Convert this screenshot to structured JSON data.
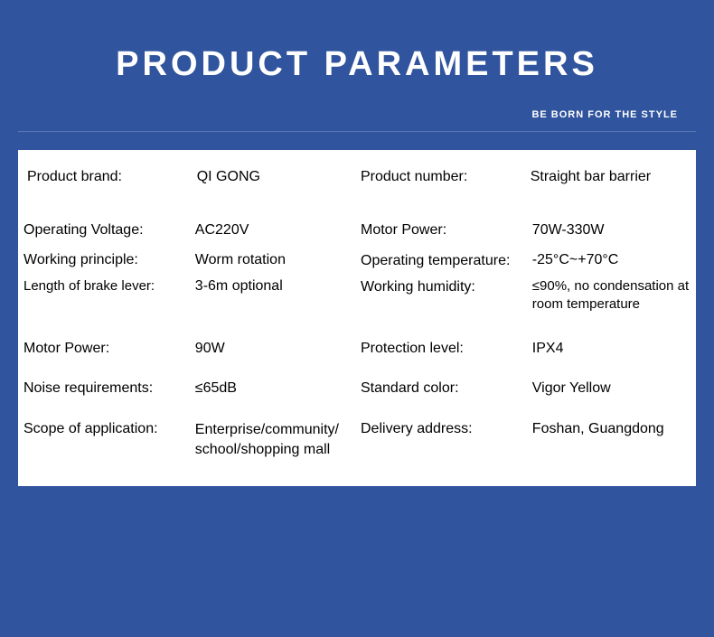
{
  "header": {
    "title": "PRODUCT PARAMETERS",
    "subtitle": "BE BORN FOR THE STYLE"
  },
  "colors": {
    "page_bg": "#30549d",
    "panel_bg": "#ffffff",
    "title_color": "#ffffff",
    "subtitle_color": "#ffffff",
    "divider_color": "#5a78b3",
    "text_color": "#000000"
  },
  "typography": {
    "title_fontsize": 38,
    "title_weight": 900,
    "title_letter_spacing": 4,
    "subtitle_fontsize": 11,
    "body_fontsize": 16
  },
  "params": {
    "left": [
      {
        "label": "Product brand:",
        "value": "QI GONG"
      },
      {
        "label": "Operating Voltage:",
        "value": "AC220V"
      },
      {
        "label": "Working principle:",
        "value": "Worm rotation"
      },
      {
        "label": "Length of brake lever:",
        "value": "3-6m optional"
      },
      {
        "label": "Motor Power:",
        "value": "90W"
      },
      {
        "label": "Noise requirements:",
        "value": "≤65dB"
      },
      {
        "label": "Scope of application:",
        "value": "Enterprise/community/ school/shopping mall"
      }
    ],
    "right": [
      {
        "label": "Product number:",
        "value": "Straight bar barrier"
      },
      {
        "label": "Motor Power:",
        "value": "70W-330W"
      },
      {
        "label": "Operating temperature:",
        "value": "-25°C~+70°C"
      },
      {
        "label": "Working humidity:",
        "value": "≤90%, no condensation at room temperature"
      },
      {
        "label": "Protection level:",
        "value": "IPX4"
      },
      {
        "label": "Standard color:",
        "value": "Vigor Yellow"
      },
      {
        "label": "Delivery address:",
        "value": "Foshan, Guangdong"
      }
    ]
  }
}
